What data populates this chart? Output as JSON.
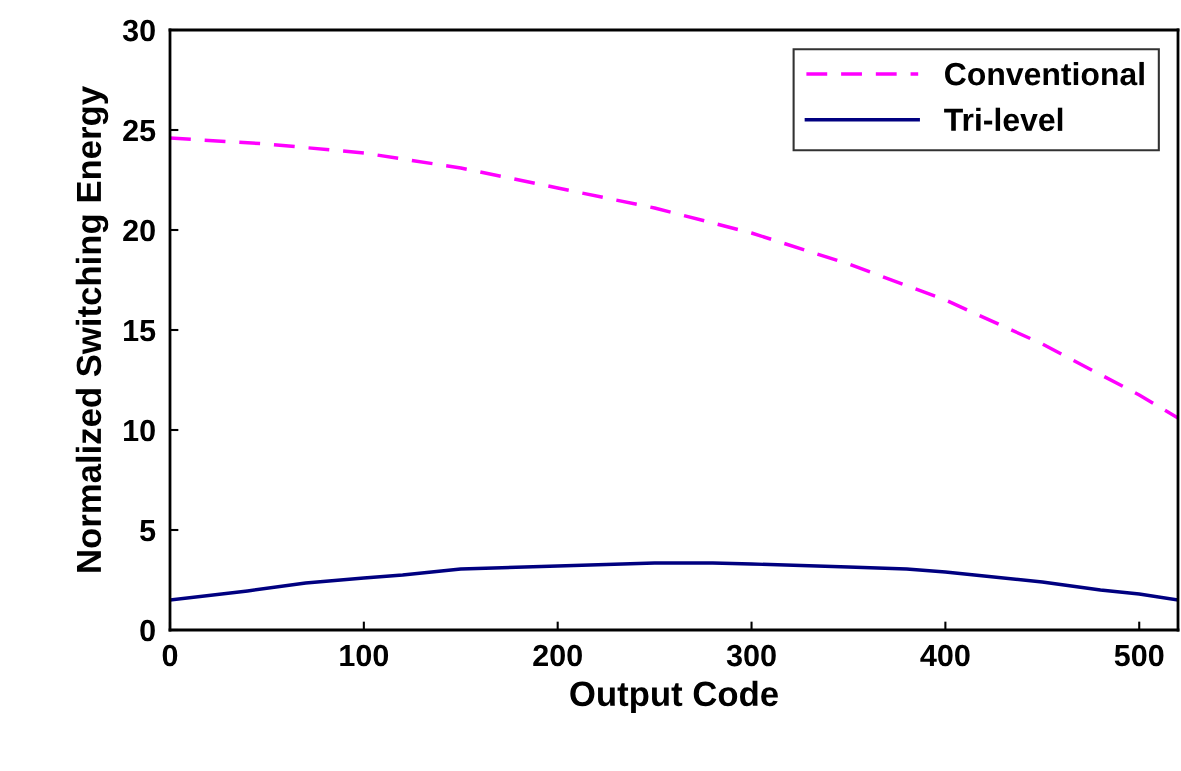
{
  "chart_data": {
    "type": "line",
    "xlabel": "Output Code",
    "ylabel": "Normalized Switching Energy",
    "xlim": [
      0,
      520
    ],
    "xticks": [
      0,
      100,
      200,
      300,
      400,
      500
    ],
    "ylim": [
      0,
      30
    ],
    "yticks": [
      0,
      5,
      10,
      15,
      20,
      25,
      30
    ],
    "grid": false,
    "legend": "top right",
    "series": [
      {
        "name": "Conventional",
        "color": "#ff00ff",
        "line_style": "dashed",
        "x": [
          0,
          50,
          100,
          150,
          200,
          250,
          300,
          350,
          400,
          450,
          500,
          520
        ],
        "values": [
          24.6,
          24.3,
          23.85,
          23.1,
          22.1,
          21.1,
          19.85,
          18.3,
          16.5,
          14.3,
          11.75,
          10.6
        ]
      },
      {
        "name": "Tri-level",
        "color": "#000080",
        "line_style": "solid",
        "x": [
          0,
          40,
          70,
          100,
          120,
          150,
          200,
          250,
          280,
          300,
          350,
          380,
          400,
          420,
          450,
          480,
          500,
          520
        ],
        "values": [
          1.5,
          1.95,
          2.35,
          2.6,
          2.75,
          3.05,
          3.2,
          3.35,
          3.35,
          3.3,
          3.15,
          3.05,
          2.9,
          2.7,
          2.4,
          2.0,
          1.8,
          1.5
        ]
      }
    ]
  }
}
